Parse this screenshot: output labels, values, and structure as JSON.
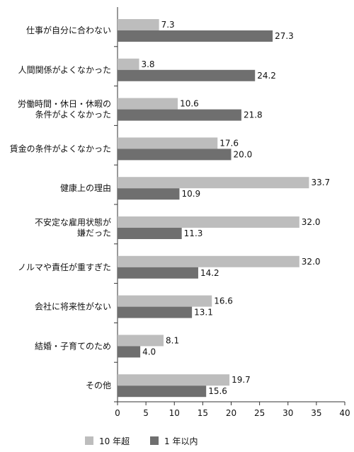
{
  "chart_data": {
    "type": "bar",
    "orientation": "horizontal",
    "categories": [
      [
        "仕事が自分に合わない"
      ],
      [
        "人間関係がよくなかった"
      ],
      [
        "労働時間・休日・休暇の",
        "条件がよくなかった"
      ],
      [
        "賃金の条件がよくなかった"
      ],
      [
        "健康上の理由"
      ],
      [
        "不安定な雇用状態が",
        "嫌だった"
      ],
      [
        "ノルマや責任が重すぎた"
      ],
      [
        "会社に将来性がない"
      ],
      [
        "結婚・子育てのため"
      ],
      [
        "その他"
      ]
    ],
    "series": [
      {
        "name": "10 年超",
        "color": "#bdbdbd",
        "values": [
          "7.3",
          "3.8",
          "10.6",
          "17.6",
          "33.7",
          "32.0",
          "32.0",
          "16.6",
          "8.1",
          "19.7"
        ]
      },
      {
        "name": "1 年以内",
        "color": "#6f6f6f",
        "values": [
          "27.3",
          "24.2",
          "21.8",
          "20.0",
          "10.9",
          "11.3",
          "14.2",
          "13.1",
          "4.0",
          "15.6"
        ]
      }
    ],
    "xlim": [
      0,
      40
    ],
    "xticks": [
      "0",
      "5",
      "10",
      "15",
      "20",
      "25",
      "30",
      "35",
      "40"
    ],
    "grid": false,
    "legend_position": "bottom-left"
  }
}
